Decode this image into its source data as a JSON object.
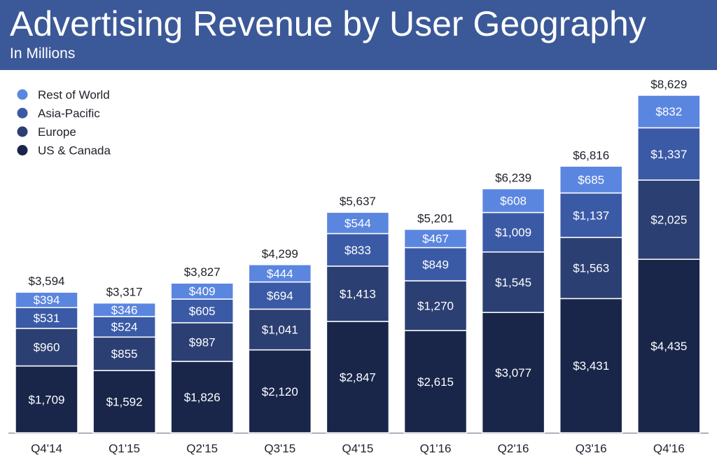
{
  "header": {
    "title": "Advertising Revenue by User Geography",
    "subtitle": "In Millions"
  },
  "chart_data": {
    "type": "bar",
    "stacked": true,
    "title": "Advertising Revenue by User Geography",
    "subtitle": "In Millions",
    "xlabel": "",
    "ylabel": "",
    "ylim": [
      0,
      8629
    ],
    "grid": false,
    "legend_position": "top-left",
    "categories": [
      "Q4'14",
      "Q1'15",
      "Q2'15",
      "Q3'15",
      "Q4'15",
      "Q1'16",
      "Q2'16",
      "Q3'16",
      "Q4'16"
    ],
    "series": [
      {
        "name": "US & Canada",
        "color": "#19264a",
        "values": [
          1709,
          1592,
          1826,
          2120,
          2847,
          2615,
          3077,
          3431,
          4435
        ],
        "labels": [
          "$1,709",
          "$1,592",
          "$1,826",
          "$2,120",
          "$2,847",
          "$2,615",
          "$3,077",
          "$3,431",
          "$4,435"
        ]
      },
      {
        "name": "Europe",
        "color": "#2b3f72",
        "values": [
          960,
          855,
          987,
          1041,
          1413,
          1270,
          1545,
          1563,
          2025
        ],
        "labels": [
          "$960",
          "$855",
          "$987",
          "$1,041",
          "$1,413",
          "$1,270",
          "$1,545",
          "$1,563",
          "$2,025"
        ]
      },
      {
        "name": "Asia-Pacific",
        "color": "#3b5aa6",
        "values": [
          531,
          524,
          605,
          694,
          833,
          849,
          1009,
          1137,
          1337
        ],
        "labels": [
          "$531",
          "$524",
          "$605",
          "$694",
          "$833",
          "$849",
          "$1,009",
          "$1,137",
          "$1,337"
        ]
      },
      {
        "name": "Rest of World",
        "color": "#5b86e0",
        "values": [
          394,
          346,
          409,
          444,
          544,
          467,
          608,
          685,
          832
        ],
        "labels": [
          "$394",
          "$346",
          "$409",
          "$444",
          "$544",
          "$467",
          "$608",
          "$685",
          "$832"
        ]
      }
    ],
    "totals": [
      3594,
      3317,
      3827,
      4299,
      5637,
      5201,
      6239,
      6816,
      8629
    ],
    "total_labels": [
      "$3,594",
      "$3,317",
      "$3,827",
      "$4,299",
      "$5,637",
      "$5,201",
      "$6,239",
      "$6,816",
      "$8,629"
    ],
    "legend_order": [
      "Rest of World",
      "Asia-Pacific",
      "Europe",
      "US & Canada"
    ]
  }
}
